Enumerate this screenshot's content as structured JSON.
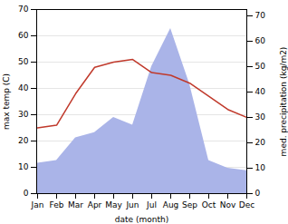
{
  "chart_data": {
    "type": "line",
    "xlabel": "date (month)",
    "ylabel": "max temp (C)",
    "y2label": "med. precipitation (kg/m2)",
    "categories": [
      "Jan",
      "Feb",
      "Mar",
      "Apr",
      "May",
      "Jun",
      "Jul",
      "Aug",
      "Sep",
      "Oct",
      "Nov",
      "Dec"
    ],
    "series": [
      {
        "type": "area",
        "axis": "y2",
        "color": "#aab4e8",
        "values": [
          12,
          13,
          22,
          24,
          30,
          27,
          50,
          65,
          43,
          13,
          10,
          9
        ]
      },
      {
        "type": "line",
        "color": "#c0392b",
        "values": [
          25,
          26,
          38,
          48,
          50,
          51,
          46,
          45,
          42,
          37,
          32,
          29
        ]
      }
    ],
    "ylim": [
      0,
      70
    ],
    "yticks": [
      0,
      10,
      20,
      30,
      40,
      50,
      60,
      70
    ],
    "y2lim": [
      0,
      72.5
    ],
    "y2ticks": [
      0,
      10,
      20,
      30,
      40,
      50,
      60,
      70
    ],
    "grid": true
  }
}
